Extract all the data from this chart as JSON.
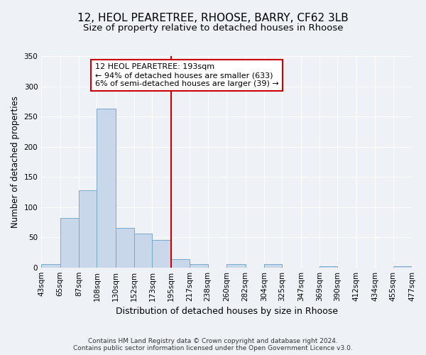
{
  "title": "12, HEOL PEARETREE, RHOOSE, BARRY, CF62 3LB",
  "subtitle": "Size of property relative to detached houses in Rhoose",
  "xlabel": "Distribution of detached houses by size in Rhoose",
  "ylabel": "Number of detached properties",
  "footer_lines": [
    "Contains HM Land Registry data © Crown copyright and database right 2024.",
    "Contains public sector information licensed under the Open Government Licence v3.0."
  ],
  "bin_edges": [
    43,
    65,
    87,
    108,
    130,
    152,
    173,
    195,
    217,
    238,
    260,
    282,
    304,
    325,
    347,
    369,
    390,
    412,
    434,
    455,
    477
  ],
  "bin_labels": [
    "43sqm",
    "65sqm",
    "87sqm",
    "108sqm",
    "130sqm",
    "152sqm",
    "173sqm",
    "195sqm",
    "217sqm",
    "238sqm",
    "260sqm",
    "282sqm",
    "304sqm",
    "325sqm",
    "347sqm",
    "369sqm",
    "390sqm",
    "412sqm",
    "434sqm",
    "455sqm",
    "477sqm"
  ],
  "bar_heights": [
    6,
    82,
    128,
    263,
    66,
    56,
    46,
    14,
    6,
    0,
    5,
    0,
    5,
    0,
    0,
    2,
    0,
    0,
    0,
    2
  ],
  "bar_color": "#c8d8ea",
  "bar_edge_color": "#7aaac8",
  "vline_x": 195,
  "vline_color": "#cc0000",
  "ylim": [
    0,
    350
  ],
  "yticks": [
    0,
    50,
    100,
    150,
    200,
    250,
    300,
    350
  ],
  "annotation_title": "12 HEOL PEARETREE: 193sqm",
  "annotation_line1": "← 94% of detached houses are smaller (633)",
  "annotation_line2": "6% of semi-detached houses are larger (39) →",
  "annotation_box_color": "#ffffff",
  "annotation_box_edge": "#cc0000",
  "background_color": "#eef2f7",
  "grid_color": "#ffffff",
  "title_fontsize": 11,
  "subtitle_fontsize": 9.5,
  "ylabel_fontsize": 8.5,
  "xlabel_fontsize": 9,
  "tick_fontsize": 7.5,
  "annotation_fontsize": 8,
  "footer_fontsize": 6.5
}
